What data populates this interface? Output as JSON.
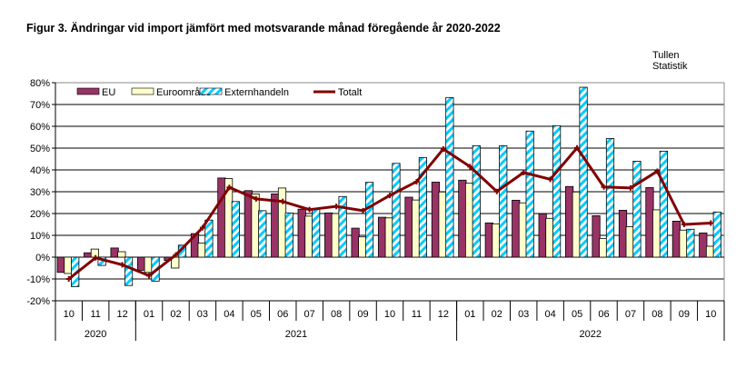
{
  "title": "Figur  3. Ändringar vid  import jämfört med motsvarande månad föregående år 2020-2022",
  "source": [
    "Tullen",
    "Statistik"
  ],
  "chart_data": {
    "type": "bar",
    "ylim": [
      -20,
      80
    ],
    "yticks": [
      -20,
      -10,
      0,
      10,
      20,
      30,
      40,
      50,
      60,
      70,
      80
    ],
    "ytick_labels": [
      "-20%",
      "-10%",
      "0%",
      "10%",
      "20%",
      "30%",
      "40%",
      "50%",
      "60%",
      "70%",
      "80%"
    ],
    "grid": true,
    "legend_position": "top",
    "categories": [
      "10",
      "11",
      "12",
      "01",
      "02",
      "03",
      "04",
      "05",
      "06",
      "07",
      "08",
      "09",
      "10",
      "11",
      "12",
      "01",
      "02",
      "03",
      "04",
      "05",
      "06",
      "07",
      "08",
      "09",
      "10"
    ],
    "years": [
      {
        "label": "2020",
        "count": 3
      },
      {
        "label": "2021",
        "count": 12
      },
      {
        "label": "2022",
        "count": 10
      }
    ],
    "series": [
      {
        "name": "EU",
        "kind": "bar",
        "color": "#993366",
        "values": [
          -7,
          2,
          4.2,
          -6,
          -1.5,
          10.8,
          36.3,
          30.5,
          29,
          22,
          20.3,
          13.3,
          18.3,
          27.5,
          34.4,
          35.3,
          15.7,
          26.1,
          19.9,
          32.4,
          19,
          21.5,
          31.9,
          16.5,
          11.1
        ]
      },
      {
        "name": "Euroområde",
        "kind": "bar",
        "color": "#FFFFCC",
        "values": [
          -7.5,
          3.7,
          2.5,
          -7,
          -5,
          6.5,
          36,
          29,
          31.7,
          18.8,
          20,
          9.3,
          18,
          26.2,
          29.9,
          33.9,
          15.3,
          24.9,
          17.8,
          29.9,
          8.6,
          14,
          21.7,
          12.4,
          5
        ]
      },
      {
        "name": "Externhandeln",
        "kind": "bar",
        "color": "#00CCFF",
        "pattern": "diagonal-stripes",
        "values": [
          -13.5,
          -3.8,
          -13,
          -11,
          5.5,
          17,
          25.5,
          21.3,
          20.3,
          22,
          27.8,
          34.3,
          43,
          45.7,
          73.2,
          51.1,
          51.1,
          57.8,
          60.3,
          77.9,
          54.4,
          44,
          48.6,
          12.8,
          20.7
        ]
      },
      {
        "name": "Totalt",
        "kind": "line",
        "color": "#800000",
        "values": [
          -10,
          -0.3,
          -3.5,
          -8.5,
          1,
          13.5,
          32,
          26.7,
          25.5,
          21.8,
          23.3,
          21.3,
          28.3,
          34.6,
          49.6,
          41.5,
          30.1,
          38.8,
          35.7,
          50.1,
          32.2,
          31.7,
          39.4,
          15,
          15.6
        ]
      }
    ]
  }
}
